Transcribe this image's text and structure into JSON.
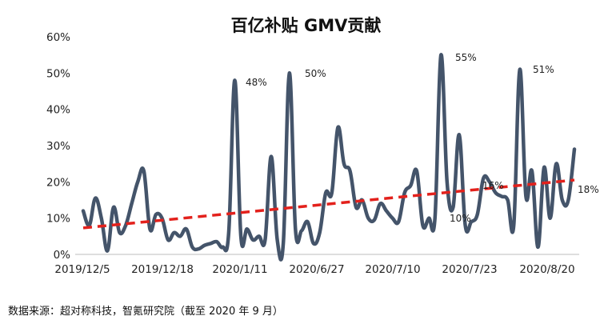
{
  "chart_data": {
    "type": "line",
    "title": "百亿补贴 GMV贡献",
    "xlabel": "",
    "ylabel": "",
    "ylim": [
      0,
      60
    ],
    "y_unit": "%",
    "y_ticks": [
      "0%",
      "10%",
      "20%",
      "30%",
      "40%",
      "50%",
      "60%"
    ],
    "x_tick_labels": [
      "2019/12/5",
      "2019/12/18",
      "2020/1/11",
      "2020/6/27",
      "2020/7/10",
      "2020/7/23",
      "2020/8/20"
    ],
    "grid": false,
    "legend": "none",
    "series": [
      {
        "values": [
          12,
          8,
          15.5,
          10,
          1,
          13,
          6,
          8,
          14,
          20,
          23,
          7,
          11,
          10,
          4,
          6,
          5,
          7,
          2,
          1.5,
          2.5,
          3,
          3.5,
          2,
          6,
          48,
          5,
          7,
          4,
          5,
          4,
          27,
          4,
          3,
          50,
          7,
          6.5,
          9,
          3,
          6,
          17,
          17,
          35,
          25,
          23,
          13,
          15,
          10,
          9.5,
          14,
          12,
          10,
          9,
          17,
          19,
          23,
          8,
          10,
          10,
          55,
          20,
          13,
          33,
          8,
          9,
          11,
          21,
          20,
          17,
          16,
          15,
          8,
          51,
          16,
          23,
          2,
          24,
          10,
          25,
          15,
          15,
          29
        ],
        "color": "#44546a"
      },
      {
        "name": "",
        "kind": "trend",
        "values": [
          7.3,
          20.5
        ],
        "color": "#e3211c"
      }
    ],
    "annotations": [
      "48%",
      "50%",
      "55%",
      "51%",
      "10%",
      "16%",
      "18%"
    ]
  },
  "source": "数据来源：超对称科技，智氪研究院（截至 2020 年 9 月）"
}
